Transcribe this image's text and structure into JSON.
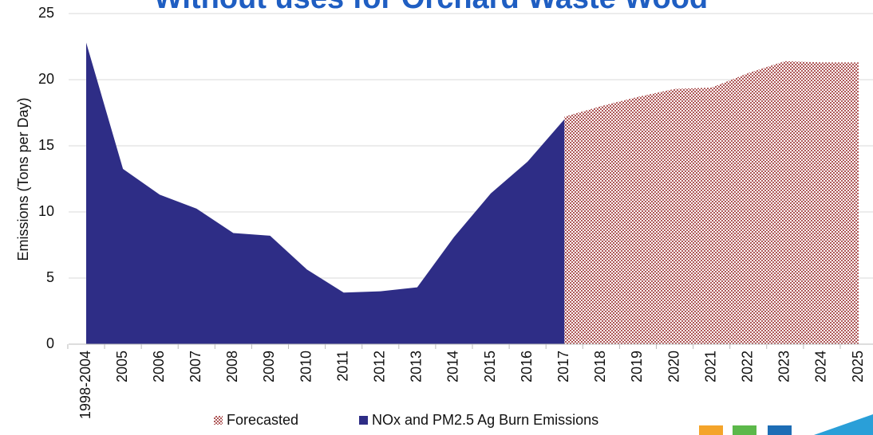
{
  "chart_data": {
    "type": "area",
    "title": "Without uses for Orchard Waste Wood",
    "ylabel": "Emissions (Tons per Day)",
    "categories": [
      "1998-2004",
      "2005",
      "2006",
      "2007",
      "2008",
      "2009",
      "2010",
      "2011",
      "2012",
      "2013",
      "2014",
      "2015",
      "2016",
      "2017",
      "2018",
      "2019",
      "2020",
      "2021",
      "2022",
      "2023",
      "2024",
      "2025"
    ],
    "series": [
      {
        "name": "Forecasted",
        "color": "#a84a4a",
        "pattern": "dots",
        "values": [
          null,
          null,
          null,
          null,
          null,
          null,
          null,
          null,
          null,
          null,
          null,
          null,
          null,
          17.2,
          18.0,
          18.7,
          19.3,
          19.4,
          20.5,
          21.4,
          21.3,
          21.3
        ]
      },
      {
        "name": "NOx and PM2.5 Ag Burn Emissions",
        "color": "#2e2d86",
        "values": [
          22.8,
          13.25,
          11.3,
          10.25,
          8.4,
          8.2,
          5.65,
          3.9,
          4.0,
          4.3,
          8.1,
          11.4,
          13.8,
          17.0,
          null,
          null,
          null,
          null,
          null,
          null,
          null,
          null
        ]
      }
    ],
    "ylim": [
      0,
      25
    ],
    "yticks": [
      0,
      5,
      10,
      15,
      20,
      25
    ],
    "grid": true,
    "legend": "bottom"
  }
}
